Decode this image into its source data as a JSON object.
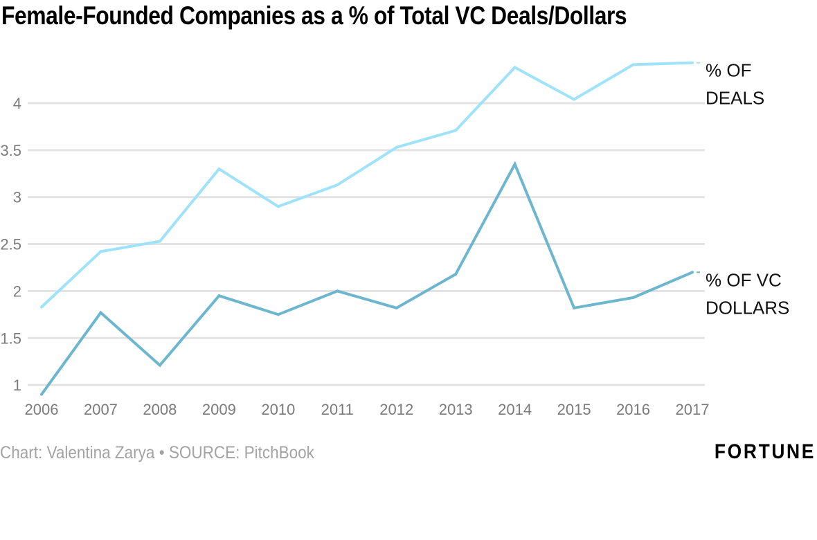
{
  "chart_data": {
    "type": "line",
    "title": "Female-Founded Companies as a % of Total VC Deals/Dollars",
    "xlabel": "",
    "ylabel": "",
    "x": [
      "2006",
      "2007",
      "2008",
      "2009",
      "2010",
      "2011",
      "2012",
      "2013",
      "2014",
      "2015",
      "2016",
      "2017"
    ],
    "y_ticks": [
      1,
      1.5,
      2,
      2.5,
      3,
      3.5,
      4
    ],
    "y_tick_labels": [
      "1",
      "1.5",
      "2",
      "2.5",
      "3",
      "3.5",
      "4"
    ],
    "ylim": [
      0.9,
      4.5
    ],
    "grid": true,
    "legend": "inline-right",
    "series": [
      {
        "name": "% OF DEALS",
        "label_lines": [
          "% OF",
          "DEALS"
        ],
        "color": "#9fe3fb",
        "values": [
          1.83,
          2.42,
          2.53,
          3.3,
          2.9,
          3.13,
          3.53,
          3.71,
          4.38,
          4.04,
          4.41,
          4.43
        ]
      },
      {
        "name": "% OF VC DOLLARS",
        "label_lines": [
          "% OF VC",
          "DOLLARS"
        ],
        "color": "#6cb6cf",
        "values": [
          0.9,
          1.77,
          1.21,
          1.95,
          1.75,
          2.0,
          1.82,
          2.18,
          3.35,
          1.82,
          1.93,
          2.2
        ]
      }
    ]
  },
  "footer": {
    "credit": "Chart: Valentina Zarya • SOURCE: PitchBook",
    "logo": "FORTUNE"
  },
  "colors": {
    "grid": "#e3e3e3",
    "tick": "#7b7b7b"
  }
}
